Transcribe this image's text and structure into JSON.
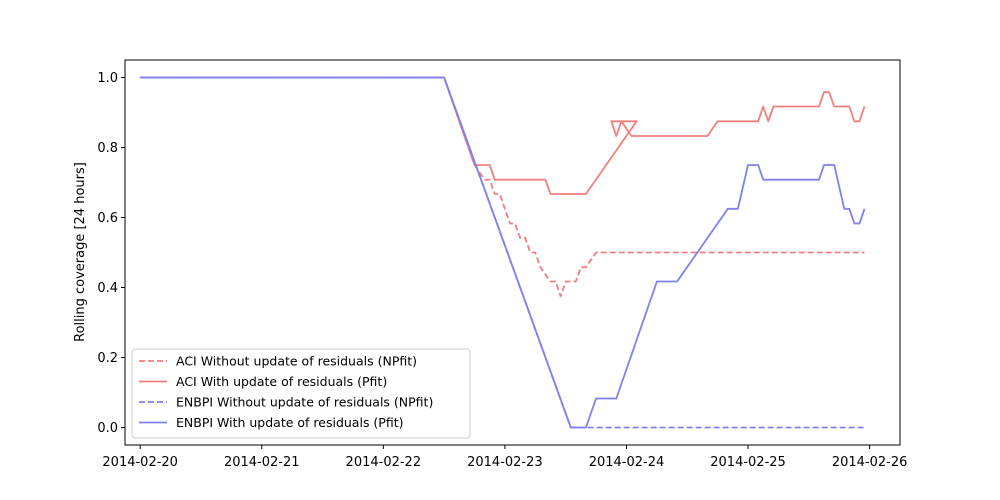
{
  "chart_data": {
    "type": "line",
    "title": "",
    "xlabel": "",
    "ylabel": "Rolling coverage [24 hours]",
    "ylim": [
      -0.05,
      1.05
    ],
    "yticks": [
      0.0,
      0.2,
      0.4,
      0.6,
      0.8,
      1.0
    ],
    "ytick_labels": [
      "0.0",
      "0.2",
      "0.4",
      "0.6",
      "0.8",
      "1.0"
    ],
    "xlim": [
      "2014-02-19 21:00",
      "2014-02-26 06:00"
    ],
    "xticks": [
      "2014-02-20",
      "2014-02-21",
      "2014-02-22",
      "2014-02-23",
      "2014-02-24",
      "2014-02-25",
      "2014-02-26"
    ],
    "grid": false,
    "legend_position": "lower-left",
    "series": [
      {
        "name": "ACI Without update of residuals (NPfit)",
        "color": "#f08080",
        "dash": "dashed",
        "points": [
          [
            "2014-02-20 00:00",
            1.0
          ],
          [
            "2014-02-22 12:00",
            1.0
          ],
          [
            "2014-02-22 18:00",
            0.75
          ],
          [
            "2014-02-22 20:00",
            0.708
          ],
          [
            "2014-02-22 21:00",
            0.708
          ],
          [
            "2014-02-22 22:00",
            0.667
          ],
          [
            "2014-02-22 23:00",
            0.667
          ],
          [
            "2014-02-23 00:00",
            0.625
          ],
          [
            "2014-02-23 01:00",
            0.583
          ],
          [
            "2014-02-23 02:00",
            0.583
          ],
          [
            "2014-02-23 03:00",
            0.542
          ],
          [
            "2014-02-23 04:00",
            0.542
          ],
          [
            "2014-02-23 05:00",
            0.5
          ],
          [
            "2014-02-23 06:00",
            0.5
          ],
          [
            "2014-02-23 07:00",
            0.458
          ],
          [
            "2014-02-23 09:00",
            0.417
          ],
          [
            "2014-02-23 10:00",
            0.417
          ],
          [
            "2014-02-23 11:00",
            0.375
          ],
          [
            "2014-02-23 12:00",
            0.417
          ],
          [
            "2014-02-23 14:00",
            0.417
          ],
          [
            "2014-02-23 15:00",
            0.458
          ],
          [
            "2014-02-23 16:00",
            0.458
          ],
          [
            "2014-02-23 18:00",
            0.5
          ],
          [
            "2014-02-25 23:00",
            0.5
          ]
        ]
      },
      {
        "name": "ACI With update of residuals (Pfit)",
        "color": "#f08080",
        "dash": "solid",
        "points": [
          [
            "2014-02-20 00:00",
            1.0
          ],
          [
            "2014-02-22 12:00",
            1.0
          ],
          [
            "2014-02-22 18:00",
            0.75
          ],
          [
            "2014-02-22 21:00",
            0.75
          ],
          [
            "2014-02-22 22:00",
            0.708
          ],
          [
            "2014-02-23 08:00",
            0.708
          ],
          [
            "2014-02-23 09:00",
            0.667
          ],
          [
            "2014-02-23 16:00",
            0.667
          ],
          [
            "2014-02-24 02:00",
            0.875
          ],
          [
            "2014-02-23 21:00",
            0.875
          ],
          [
            "2014-02-23 22:00",
            0.833
          ],
          [
            "2014-02-23 23:00",
            0.875
          ],
          [
            "2014-02-24 01:00",
            0.833
          ],
          [
            "2014-02-24 16:00",
            0.833
          ],
          [
            "2014-02-24 18:00",
            0.875
          ],
          [
            "2014-02-25 02:00",
            0.875
          ],
          [
            "2014-02-25 03:00",
            0.917
          ],
          [
            "2014-02-25 04:00",
            0.875
          ],
          [
            "2014-02-25 05:00",
            0.917
          ],
          [
            "2014-02-25 14:00",
            0.917
          ],
          [
            "2014-02-25 15:00",
            0.958
          ],
          [
            "2014-02-25 16:00",
            0.958
          ],
          [
            "2014-02-25 17:00",
            0.917
          ],
          [
            "2014-02-25 20:00",
            0.917
          ],
          [
            "2014-02-25 21:00",
            0.875
          ],
          [
            "2014-02-25 22:00",
            0.875
          ],
          [
            "2014-02-25 23:00",
            0.917
          ]
        ]
      },
      {
        "name": "ENBPI Without update of residuals (NPfit)",
        "color": "#8080f0",
        "dash": "dashed",
        "points": [
          [
            "2014-02-20 00:00",
            1.0
          ],
          [
            "2014-02-22 12:00",
            1.0
          ],
          [
            "2014-02-23 13:00",
            0.0
          ],
          [
            "2014-02-25 23:00",
            0.0
          ]
        ]
      },
      {
        "name": "ENBPI With update of residuals (Pfit)",
        "color": "#8080f0",
        "dash": "solid",
        "points": [
          [
            "2014-02-20 00:00",
            1.0
          ],
          [
            "2014-02-22 12:00",
            1.0
          ],
          [
            "2014-02-23 13:00",
            0.0
          ],
          [
            "2014-02-23 16:00",
            0.0
          ],
          [
            "2014-02-23 18:00",
            0.083
          ],
          [
            "2014-02-23 22:00",
            0.083
          ],
          [
            "2014-02-24 06:00",
            0.417
          ],
          [
            "2014-02-24 10:00",
            0.417
          ],
          [
            "2014-02-24 20:00",
            0.625
          ],
          [
            "2014-02-24 22:00",
            0.625
          ],
          [
            "2014-02-25 00:00",
            0.75
          ],
          [
            "2014-02-25 02:00",
            0.75
          ],
          [
            "2014-02-25 03:00",
            0.708
          ],
          [
            "2014-02-25 14:00",
            0.708
          ],
          [
            "2014-02-25 15:00",
            0.75
          ],
          [
            "2014-02-25 17:00",
            0.75
          ],
          [
            "2014-02-25 19:00",
            0.625
          ],
          [
            "2014-02-25 20:00",
            0.625
          ],
          [
            "2014-02-25 21:00",
            0.583
          ],
          [
            "2014-02-25 22:00",
            0.583
          ],
          [
            "2014-02-25 23:00",
            0.625
          ]
        ]
      }
    ]
  }
}
